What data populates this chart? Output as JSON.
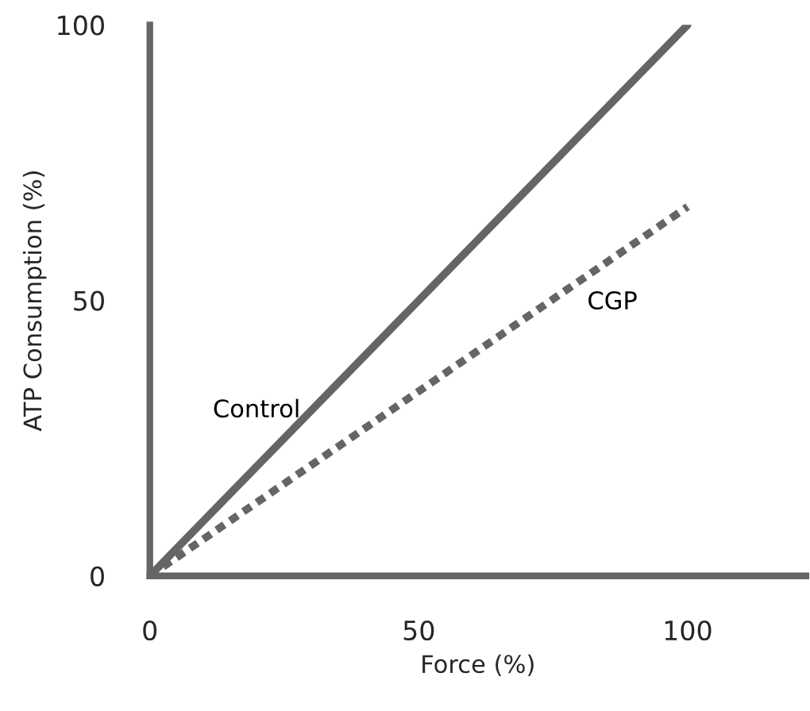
{
  "chart_data": {
    "type": "line",
    "xlabel": "Force (%)",
    "ylabel": "ATP Consumption (%)",
    "x": [
      0,
      100
    ],
    "series": [
      {
        "name": "Control",
        "color": "#656565",
        "values": [
          0,
          100
        ],
        "line_style": "solid"
      },
      {
        "name": "CGP",
        "color": "#656565",
        "values": [
          0,
          67
        ],
        "line_style": "dashed"
      }
    ],
    "xlim": [
      0,
      122
    ],
    "ylim": [
      0,
      100
    ],
    "xticks": [
      0,
      50,
      100
    ],
    "yticks": [
      0,
      50,
      100
    ],
    "grid": false,
    "legend": false,
    "marker": "none"
  }
}
